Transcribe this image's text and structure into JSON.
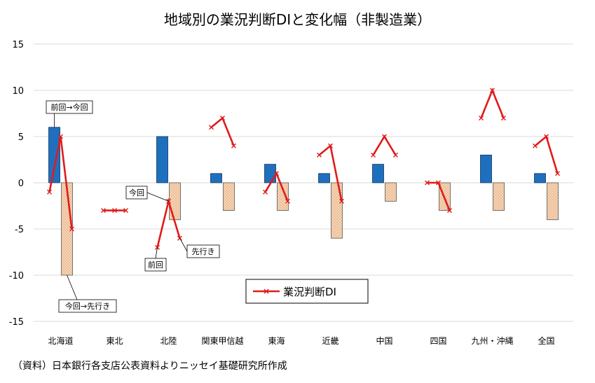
{
  "chart_data": {
    "type": "bar",
    "title": "地域別の業況判断DIと変化幅（非製造業）",
    "categories": [
      "北海道",
      "東北",
      "北陸",
      "関東甲信越",
      "東海",
      "近畿",
      "中国",
      "四国",
      "九州・沖縄",
      "全国"
    ],
    "y_ticks": [
      "15",
      "10",
      "5",
      "0",
      "-5",
      "-10",
      "-15"
    ],
    "ylim": [
      -15,
      15
    ],
    "grid": true,
    "series": [
      {
        "kind": "bar",
        "label": "前回→今回",
        "color": "#1f6fbf",
        "values": [
          6,
          0,
          5,
          1,
          2,
          1,
          2,
          0,
          3,
          1
        ]
      },
      {
        "kind": "bar",
        "label": "今回→先行き",
        "color": "#f6d6b8",
        "values": [
          -10,
          0,
          -4,
          -3,
          -3,
          -6,
          -2,
          -3,
          -3,
          -4
        ]
      },
      {
        "kind": "line",
        "name": "業況判断DI",
        "color": "#e01b1b",
        "points_label": [
          "前回",
          "今回",
          "先行き"
        ],
        "values": [
          [
            -1,
            5,
            -5
          ],
          [
            -3,
            -3,
            -3
          ],
          [
            -7,
            -2,
            -6
          ],
          [
            6,
            7,
            4
          ],
          [
            -1,
            1,
            -2
          ],
          [
            3,
            4,
            -2
          ],
          [
            3,
            5,
            3
          ],
          [
            0,
            0,
            -3
          ],
          [
            7,
            10,
            7
          ],
          [
            4,
            5,
            1
          ]
        ]
      }
    ],
    "annotations": [
      {
        "text": "前回→今回",
        "category": 0,
        "series": 0
      },
      {
        "text": "今回→先行き",
        "category": 0,
        "series": 1
      },
      {
        "text": "前回",
        "category": 2,
        "point": 0
      },
      {
        "text": "今回",
        "category": 2,
        "point": 1
      },
      {
        "text": "先行き",
        "category": 2,
        "point": 2
      }
    ],
    "legend": {
      "placement": "bottom-center",
      "label": "業況判断DI"
    }
  },
  "source_note": "（資料）日本銀行各支店公表資料よりニッセイ基礎研究所作成"
}
